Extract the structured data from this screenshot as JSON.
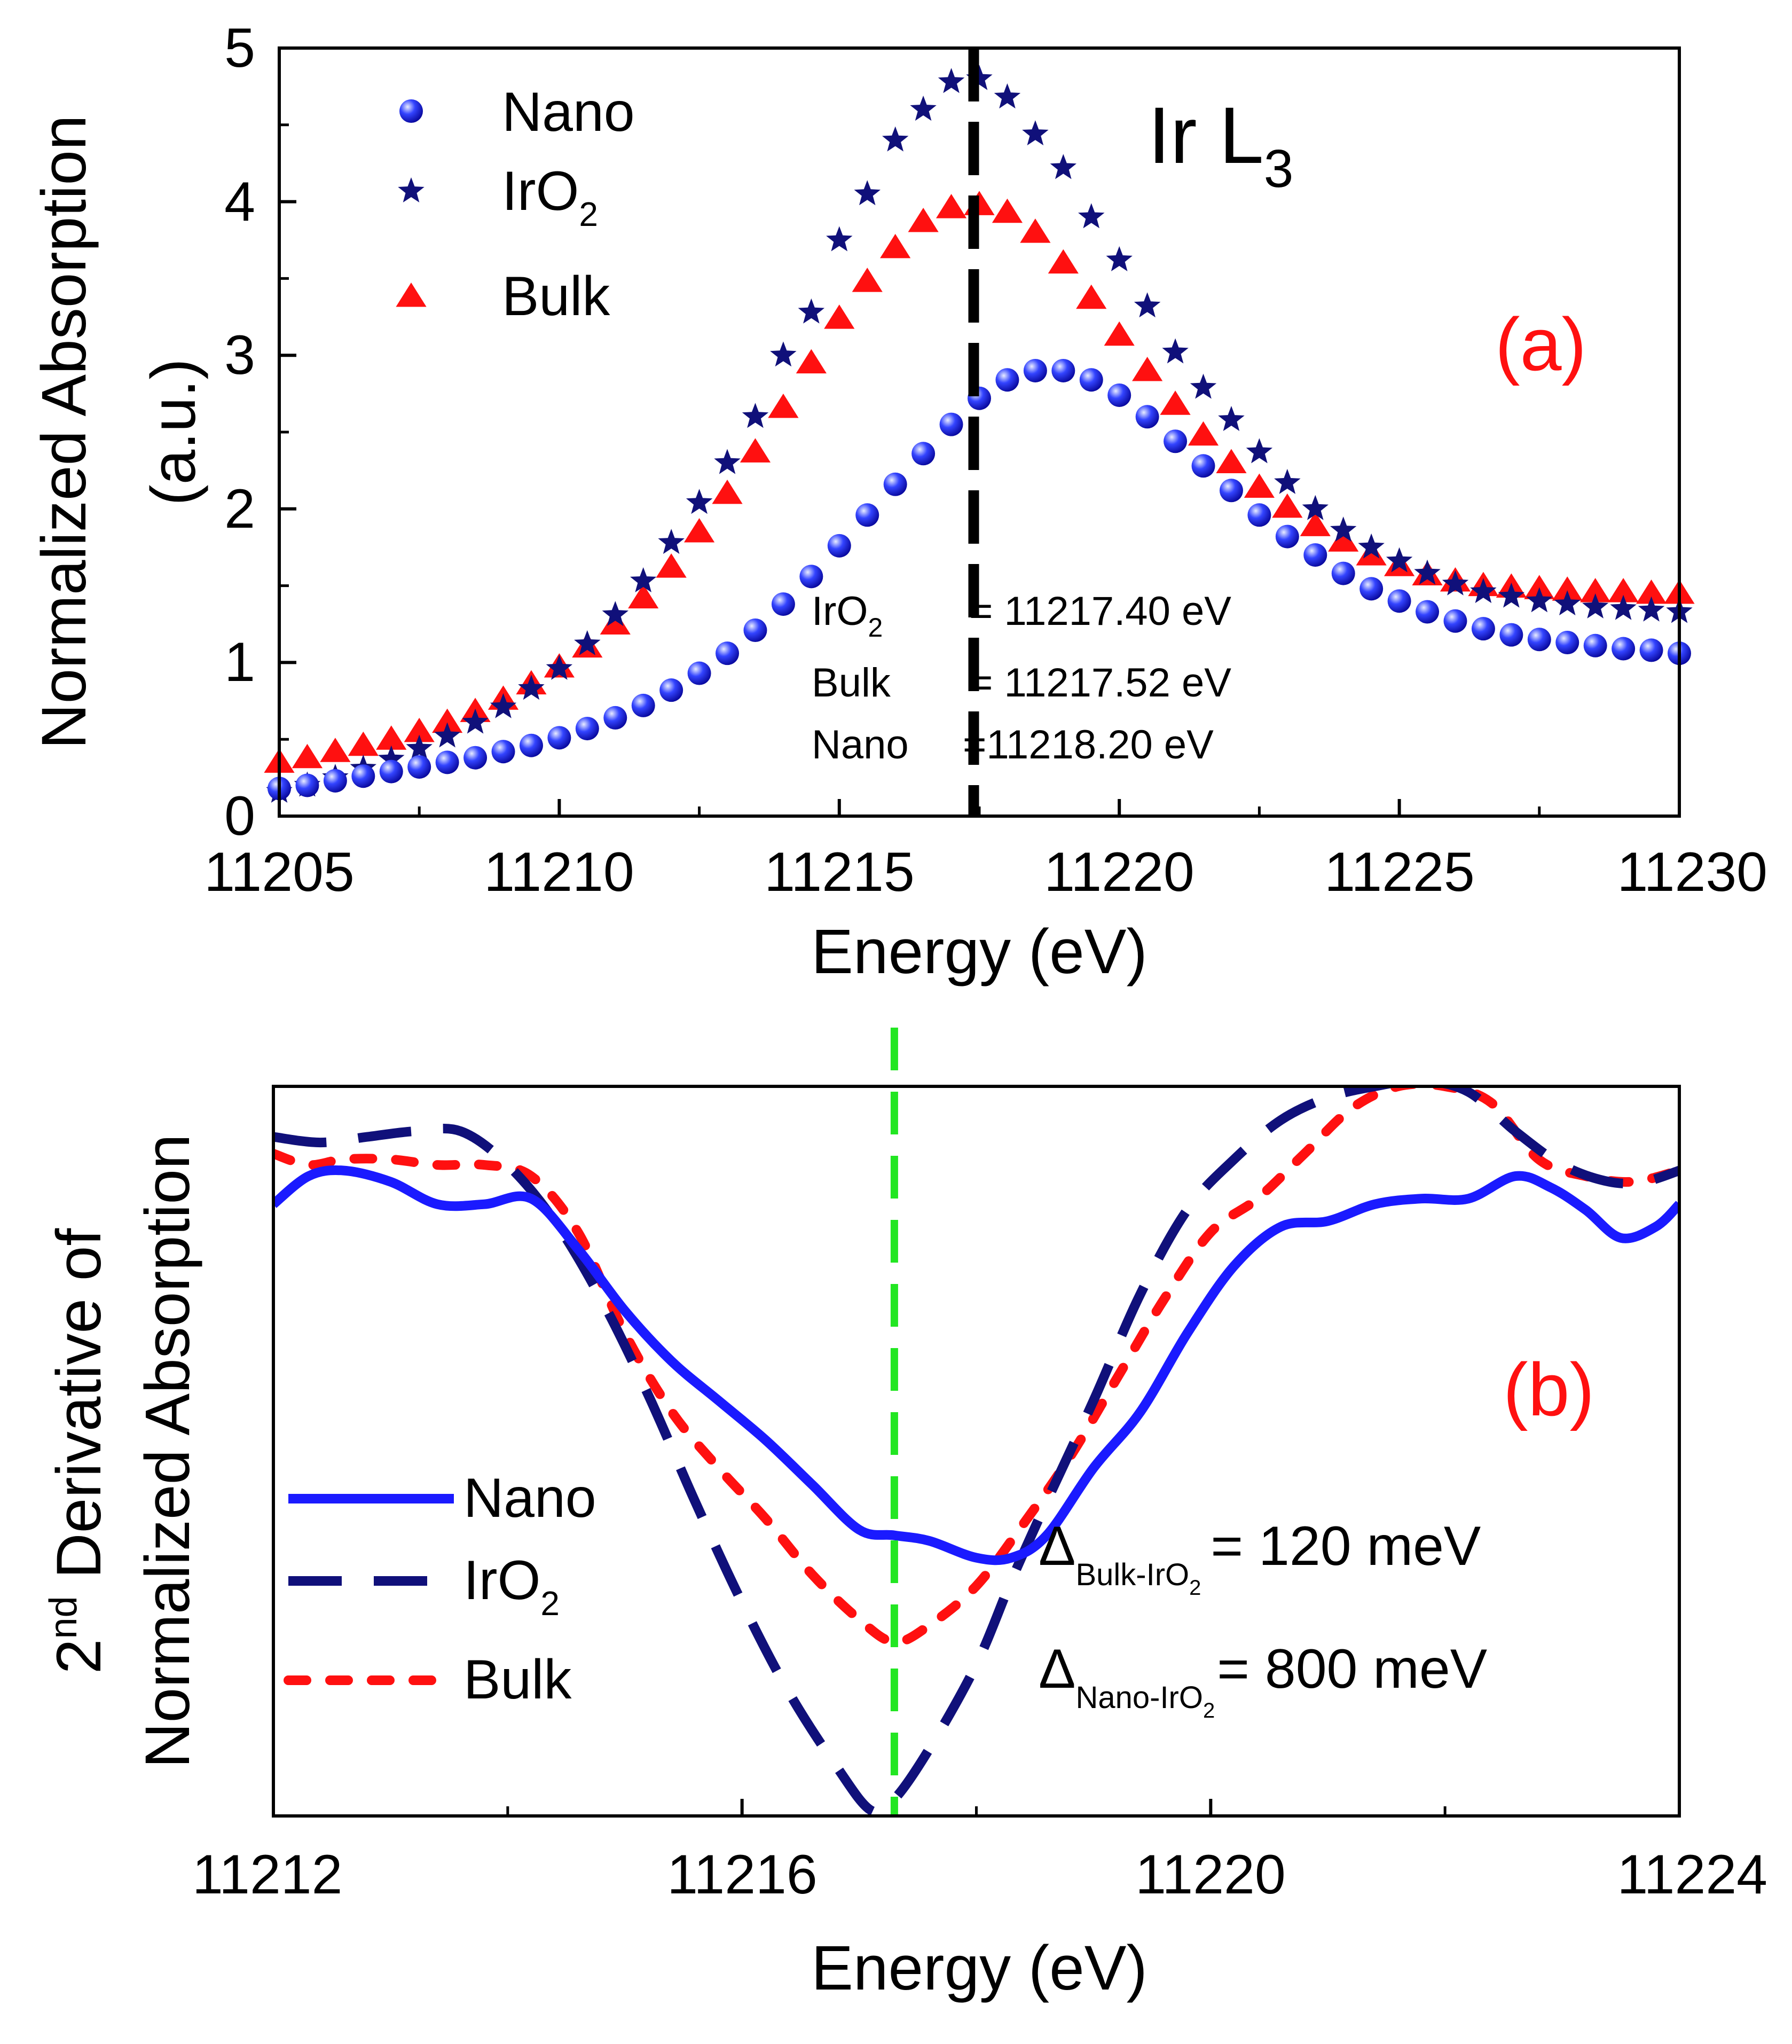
{
  "chart_data": [
    {
      "panel": "a",
      "type": "scatter",
      "title": "Ir L",
      "title_subscript": "3",
      "panel_label": "(a)",
      "xlabel": "Energy (eV)",
      "ylabel_line1": "Normalized Absorption",
      "ylabel_line2": "(a.u.)",
      "xlim": [
        11205,
        11230
      ],
      "ylim": [
        0,
        5
      ],
      "xticks": [
        11205,
        11210,
        11215,
        11220,
        11225,
        11230
      ],
      "yticks": [
        0,
        1,
        2,
        3,
        4,
        5
      ],
      "xtick_labels": [
        "11205",
        "11210",
        "11215",
        "11220",
        "11225",
        "11230"
      ],
      "ytick_labels": [
        "0",
        "1",
        "2",
        "3",
        "4",
        "5"
      ],
      "vline_x": 11217.4,
      "legend_position": "top-left",
      "series": [
        {
          "name": "Nano",
          "name_base": "Nano",
          "name_sub": "",
          "marker": "sphere",
          "color": "#1a1aff",
          "x": [
            11205.0,
            11205.5,
            11206.0,
            11206.5,
            11207.0,
            11207.5,
            11208.0,
            11208.5,
            11209.0,
            11209.5,
            11210.0,
            11210.5,
            11211.0,
            11211.5,
            11212.0,
            11212.5,
            11213.0,
            11213.5,
            11214.0,
            11214.5,
            11215.0,
            11215.5,
            11216.0,
            11216.5,
            11217.0,
            11217.5,
            11218.0,
            11218.5,
            11219.0,
            11219.5,
            11220.0,
            11220.5,
            11221.0,
            11221.5,
            11222.0,
            11222.5,
            11223.0,
            11223.5,
            11224.0,
            11224.5,
            11225.0,
            11225.5,
            11226.0,
            11226.5,
            11227.0,
            11227.5,
            11228.0,
            11228.5,
            11229.0,
            11229.5,
            11230.0
          ],
          "y": [
            0.18,
            0.2,
            0.23,
            0.26,
            0.29,
            0.32,
            0.35,
            0.38,
            0.42,
            0.46,
            0.51,
            0.57,
            0.64,
            0.72,
            0.82,
            0.93,
            1.06,
            1.21,
            1.38,
            1.56,
            1.76,
            1.96,
            2.16,
            2.36,
            2.55,
            2.72,
            2.84,
            2.9,
            2.9,
            2.84,
            2.74,
            2.6,
            2.44,
            2.28,
            2.12,
            1.96,
            1.82,
            1.7,
            1.58,
            1.48,
            1.4,
            1.33,
            1.27,
            1.22,
            1.18,
            1.15,
            1.13,
            1.11,
            1.09,
            1.08,
            1.06
          ]
        },
        {
          "name": "IrO2",
          "name_base": "IrO",
          "name_sub": "2",
          "marker": "star",
          "color": "#10107a",
          "x": [
            11205.0,
            11205.5,
            11206.0,
            11206.5,
            11207.0,
            11207.5,
            11208.0,
            11208.5,
            11209.0,
            11209.5,
            11210.0,
            11210.5,
            11211.0,
            11211.5,
            11212.0,
            11212.5,
            11213.0,
            11213.5,
            11214.0,
            11214.5,
            11215.0,
            11215.5,
            11216.0,
            11216.5,
            11217.0,
            11217.5,
            11218.0,
            11218.5,
            11219.0,
            11219.5,
            11220.0,
            11220.5,
            11221.0,
            11221.5,
            11222.0,
            11222.5,
            11223.0,
            11223.5,
            11224.0,
            11224.5,
            11225.0,
            11225.5,
            11226.0,
            11226.5,
            11227.0,
            11227.5,
            11228.0,
            11228.5,
            11229.0,
            11229.5,
            11230.0
          ],
          "y": [
            0.16,
            0.2,
            0.25,
            0.31,
            0.37,
            0.44,
            0.52,
            0.61,
            0.71,
            0.83,
            0.96,
            1.12,
            1.31,
            1.53,
            1.78,
            2.04,
            2.3,
            2.6,
            3.0,
            3.28,
            3.75,
            4.05,
            4.4,
            4.6,
            4.78,
            4.8,
            4.68,
            4.44,
            4.22,
            3.9,
            3.62,
            3.32,
            3.02,
            2.79,
            2.58,
            2.37,
            2.17,
            2.0,
            1.86,
            1.75,
            1.66,
            1.58,
            1.51,
            1.46,
            1.43,
            1.4,
            1.38,
            1.36,
            1.35,
            1.34,
            1.33
          ]
        },
        {
          "name": "Bulk",
          "name_base": "Bulk",
          "name_sub": "",
          "marker": "triangle",
          "color": "#ff1010",
          "x": [
            11205.0,
            11205.5,
            11206.0,
            11206.5,
            11207.0,
            11207.5,
            11208.0,
            11208.5,
            11209.0,
            11209.5,
            11210.0,
            11210.5,
            11211.0,
            11211.5,
            11212.0,
            11212.5,
            11213.0,
            11213.5,
            11214.0,
            11214.5,
            11215.0,
            11215.5,
            11216.0,
            11216.5,
            11217.0,
            11217.5,
            11218.0,
            11218.5,
            11219.0,
            11219.5,
            11220.0,
            11220.5,
            11221.0,
            11221.5,
            11222.0,
            11222.5,
            11223.0,
            11223.5,
            11224.0,
            11224.5,
            11225.0,
            11225.5,
            11226.0,
            11226.5,
            11227.0,
            11227.5,
            11228.0,
            11228.5,
            11229.0,
            11229.5,
            11230.0
          ],
          "y": [
            0.35,
            0.38,
            0.42,
            0.46,
            0.5,
            0.55,
            0.61,
            0.68,
            0.76,
            0.86,
            0.97,
            1.1,
            1.25,
            1.42,
            1.62,
            1.85,
            2.1,
            2.37,
            2.66,
            2.95,
            3.24,
            3.48,
            3.7,
            3.87,
            3.96,
            3.98,
            3.93,
            3.8,
            3.6,
            3.37,
            3.13,
            2.9,
            2.68,
            2.48,
            2.3,
            2.14,
            2.01,
            1.89,
            1.79,
            1.7,
            1.63,
            1.57,
            1.53,
            1.5,
            1.49,
            1.48,
            1.47,
            1.46,
            1.46,
            1.45,
            1.45
          ]
        }
      ],
      "annotations": [
        {
          "label_base": "IrO",
          "label_sub": "2",
          "value": "= 11217.40 eV"
        },
        {
          "label_base": "Bulk",
          "label_sub": "",
          "value": "= 11217.52 eV"
        },
        {
          "label_base": "Nano",
          "label_sub": "",
          "value": "=11218.20 eV"
        }
      ]
    },
    {
      "panel": "b",
      "type": "line",
      "panel_label": "(b)",
      "xlabel": "Energy (eV)",
      "ylabel_line1_sup": "nd",
      "ylabel_line1_pre": "2",
      "ylabel_line1_post": " Derivative of",
      "ylabel_line2": "Normalized Absorption",
      "xlim": [
        11212,
        11224
      ],
      "ylim": [
        -1.0,
        0.3
      ],
      "xticks_major": [
        11212,
        11216,
        11220,
        11224
      ],
      "xticks_minor": [
        11214,
        11218,
        11222
      ],
      "xtick_labels": [
        "11212",
        "11216",
        "11220",
        "11224"
      ],
      "vline_x": 11217.3,
      "legend_position": "bottom-left",
      "series": [
        {
          "name": "Nano",
          "name_base": "Nano",
          "name_sub": "",
          "style": "solid",
          "color": "#1a1aff",
          "x": [
            11212.0,
            11212.3,
            11212.6,
            11213.0,
            11213.4,
            11213.8,
            11214.2,
            11214.6,
            11215.0,
            11215.4,
            11215.8,
            11216.2,
            11216.6,
            11217.0,
            11217.3,
            11217.6,
            11218.0,
            11218.3,
            11218.6,
            11219.0,
            11219.4,
            11219.8,
            11220.2,
            11220.6,
            11221.0,
            11221.4,
            11221.8,
            11222.2,
            11222.6,
            11222.9,
            11223.2,
            11223.5,
            11223.8,
            11224.0
          ],
          "y": [
            0.09,
            0.14,
            0.15,
            0.13,
            0.09,
            0.09,
            0.1,
            0.01,
            -0.1,
            -0.19,
            -0.26,
            -0.33,
            -0.41,
            -0.49,
            -0.5,
            -0.51,
            -0.54,
            -0.54,
            -0.5,
            -0.38,
            -0.28,
            -0.14,
            -0.02,
            0.05,
            0.06,
            0.09,
            0.1,
            0.1,
            0.14,
            0.12,
            0.08,
            0.03,
            0.05,
            0.09
          ]
        },
        {
          "name": "IrO2",
          "name_base": "IrO",
          "name_sub": "2",
          "style": "dashed",
          "color": "#10107a",
          "x": [
            11212.0,
            11212.4,
            11212.8,
            11213.2,
            11213.6,
            11214.0,
            11214.4,
            11214.8,
            11215.2,
            11215.6,
            11216.0,
            11216.4,
            11216.8,
            11217.1,
            11217.3,
            11217.6,
            11218.0,
            11218.3,
            11218.6,
            11219.0,
            11219.4,
            11219.8,
            11220.2,
            11220.6,
            11221.0,
            11221.4,
            11221.8,
            11222.2,
            11222.6,
            11223.0,
            11223.4,
            11223.7,
            11224.0
          ],
          "y": [
            0.21,
            0.2,
            0.21,
            0.22,
            0.22,
            0.16,
            0.06,
            -0.08,
            -0.25,
            -0.44,
            -0.62,
            -0.78,
            -0.91,
            -0.99,
            -0.97,
            -0.88,
            -0.73,
            -0.58,
            -0.44,
            -0.26,
            -0.07,
            0.08,
            0.17,
            0.24,
            0.28,
            0.3,
            0.31,
            0.29,
            0.22,
            0.16,
            0.13,
            0.13,
            0.15
          ]
        },
        {
          "name": "Bulk",
          "name_base": "Bulk",
          "name_sub": "",
          "style": "dotted",
          "color": "#ff1010",
          "x": [
            11212.0,
            11212.3,
            11212.6,
            11213.0,
            11213.4,
            11213.8,
            11214.2,
            11214.6,
            11215.0,
            11215.4,
            11215.8,
            11216.2,
            11216.6,
            11217.0,
            11217.3,
            11217.6,
            11218.0,
            11218.4,
            11218.8,
            11219.2,
            11219.6,
            11220.0,
            11220.4,
            11220.8,
            11221.2,
            11221.6,
            11222.0,
            11222.4,
            11222.8,
            11223.2,
            11223.6,
            11224.0
          ],
          "y": [
            0.18,
            0.16,
            0.17,
            0.17,
            0.16,
            0.16,
            0.14,
            0.04,
            -0.14,
            -0.28,
            -0.38,
            -0.47,
            -0.57,
            -0.65,
            -0.69,
            -0.66,
            -0.59,
            -0.48,
            -0.36,
            -0.22,
            -0.08,
            0.04,
            0.1,
            0.18,
            0.26,
            0.3,
            0.3,
            0.27,
            0.17,
            0.14,
            0.13,
            0.15
          ]
        }
      ],
      "annotations": [
        {
          "delta": "Δ",
          "sub_base": "Bulk-IrO",
          "sub_sub": "2",
          "value": "=  120 meV"
        },
        {
          "delta": "Δ",
          "sub_base": "Nano-IrO",
          "sub_sub": "2",
          "value": "=  800 meV"
        }
      ]
    }
  ]
}
